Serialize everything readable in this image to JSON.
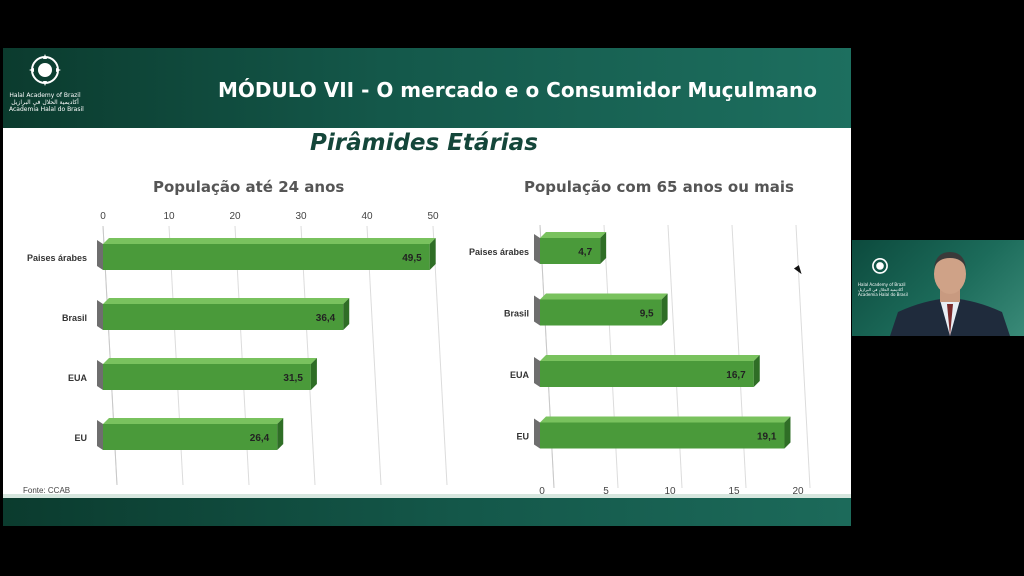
{
  "header": {
    "logo_lines": [
      "Halal Academy of Brazil",
      "أكاديمية الحلال في البرازيل",
      "Academia Halal do Brasil"
    ],
    "module_title": "MÓDULO VII - O mercado e o Consumidor Muçulmano"
  },
  "slide_title": "Pirâmides Etárias",
  "source": "Fonte: CCAB",
  "colors": {
    "bar": "#4a9a3a",
    "bar_top": "#79c25e",
    "bar_side": "#2f6e26",
    "header": "#14584a"
  },
  "camera": {
    "logo_lines": [
      "Halal Academy of Brazil",
      "أكاديمية الحلال في البرازيل",
      "Academia Halal do Brasil"
    ]
  },
  "chart_data": [
    {
      "type": "bar",
      "orientation": "horizontal",
      "title": "População até 24 anos",
      "categories": [
        "Paises árabes",
        "Brasil",
        "EUA",
        "EU"
      ],
      "values": [
        49.5,
        36.4,
        31.5,
        26.4
      ],
      "value_labels": [
        "49,5",
        "36,4",
        "31,5",
        "26,4"
      ],
      "xlim": [
        0,
        50
      ],
      "ticks": [
        0,
        10,
        20,
        30,
        40,
        50
      ],
      "axis_position": "top",
      "grid": true
    },
    {
      "type": "bar",
      "orientation": "horizontal",
      "title": "População com 65 anos ou mais",
      "categories": [
        "Paises árabes",
        "Brasil",
        "EUA",
        "EU"
      ],
      "values": [
        4.7,
        9.5,
        16.7,
        19.1
      ],
      "value_labels": [
        "4,7",
        "9,5",
        "16,7",
        "19,1"
      ],
      "xlim": [
        0,
        20
      ],
      "ticks": [
        0,
        5,
        10,
        15,
        20
      ],
      "axis_position": "bottom",
      "grid": true
    }
  ]
}
